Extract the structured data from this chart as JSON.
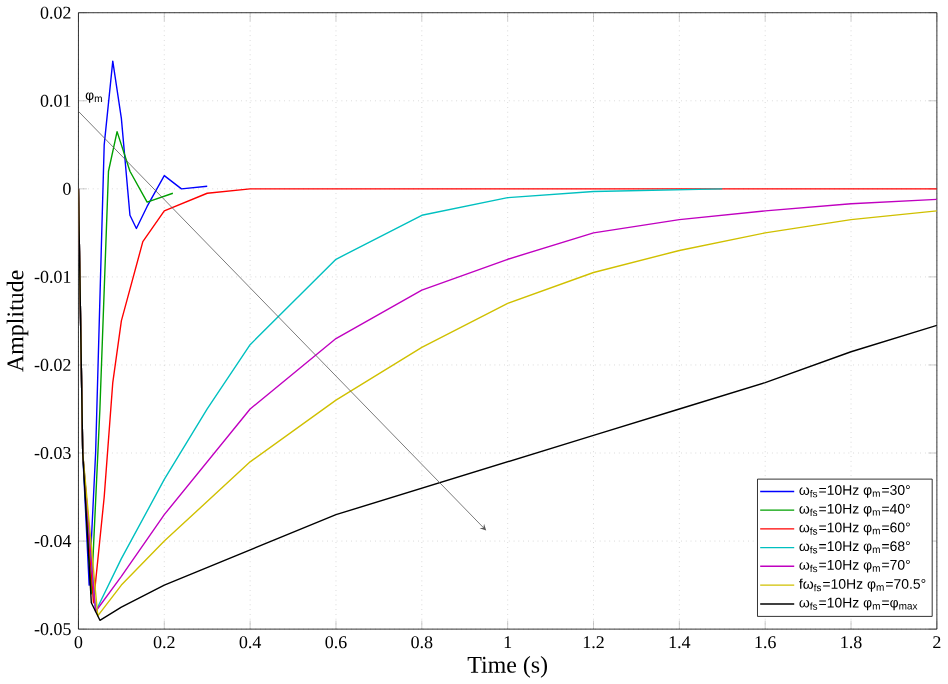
{
  "chart_data": {
    "type": "line",
    "xlabel": "Time (s)",
    "ylabel": "Amplitude",
    "xlim": [
      0,
      2
    ],
    "ylim": [
      -0.05,
      0.02
    ],
    "xticks": [
      0,
      0.2,
      0.4,
      0.6,
      0.8,
      1,
      1.2,
      1.4,
      1.6,
      1.8,
      2
    ],
    "yticks": [
      -0.05,
      -0.04,
      -0.03,
      -0.02,
      -0.01,
      0,
      0.01,
      0.02
    ],
    "grid": true,
    "legend": "bottom right",
    "marker": "none",
    "line_style": "solid",
    "annotations": [
      "φ$_{m}$"
    ],
    "series": [
      {
        "name": "ω$_{fs}$=10Hz φ$_{m}$=30°",
        "color": "#0000ff",
        "x": [
          0,
          0.01,
          0.025,
          0.04,
          0.06,
          0.08,
          0.1,
          0.12,
          0.135,
          0.16,
          0.2,
          0.24,
          0.3
        ],
        "values": [
          0,
          -0.03,
          -0.045,
          -0.03,
          0.005,
          0.0145,
          0.008,
          -0.003,
          -0.0045,
          -0.002,
          0.0015,
          0,
          0.0003
        ]
      },
      {
        "name": "ω$_{fs}$=10Hz φ$_{m}$=40°",
        "color": "#00a000",
        "x": [
          0,
          0.01,
          0.03,
          0.05,
          0.07,
          0.09,
          0.12,
          0.16,
          0.22
        ],
        "values": [
          0,
          -0.03,
          -0.046,
          -0.025,
          0.002,
          0.0065,
          0.002,
          -0.0015,
          -0.0005
        ]
      },
      {
        "name": "ω$_{fs}$=10Hz φ$_{m}$=60°",
        "color": "#ff0000",
        "x": [
          0,
          0.01,
          0.035,
          0.06,
          0.08,
          0.1,
          0.15,
          0.2,
          0.3,
          0.4,
          2
        ],
        "values": [
          0,
          -0.03,
          -0.047,
          -0.035,
          -0.022,
          -0.015,
          -0.006,
          -0.0025,
          -0.0005,
          0,
          0
        ]
      },
      {
        "name": "ω$_{fs}$=10Hz φ$_{m}$=68°",
        "color": "#00c0c0",
        "x": [
          0,
          0.01,
          0.04,
          0.1,
          0.2,
          0.3,
          0.4,
          0.6,
          0.8,
          1,
          1.2,
          1.5
        ],
        "values": [
          0,
          -0.03,
          -0.048,
          -0.042,
          -0.033,
          -0.025,
          -0.0177,
          -0.008,
          -0.003,
          -0.001,
          -0.0003,
          0
        ]
      },
      {
        "name": "ω$_{fs}$=10Hz φ$_{m}$=70°",
        "color": "#c000c0",
        "x": [
          0,
          0.01,
          0.04,
          0.1,
          0.2,
          0.4,
          0.6,
          0.8,
          1,
          1.2,
          1.4,
          1.6,
          1.8,
          2
        ],
        "values": [
          0,
          -0.03,
          -0.048,
          -0.044,
          -0.037,
          -0.025,
          -0.017,
          -0.0115,
          -0.008,
          -0.005,
          -0.0035,
          -0.0025,
          -0.0017,
          -0.0012
        ]
      },
      {
        "name": "fω$_{fs}$=10Hz φ$_{m}$=70.5°",
        "color": "#d0c000",
        "x": [
          0,
          0.01,
          0.045,
          0.1,
          0.2,
          0.4,
          0.6,
          0.8,
          1,
          1.2,
          1.4,
          1.6,
          1.8,
          2
        ],
        "values": [
          0,
          -0.03,
          -0.0485,
          -0.045,
          -0.04,
          -0.031,
          -0.024,
          -0.018,
          -0.013,
          -0.0095,
          -0.007,
          -0.005,
          -0.0035,
          -0.0025
        ]
      },
      {
        "name": "ω$_{fs}$=10Hz φ$_{m}$=φ$_{max}$",
        "color": "#000000",
        "x": [
          0,
          0.01,
          0.03,
          0.05,
          0.1,
          0.2,
          0.4,
          0.6,
          0.8,
          1,
          1.2,
          1.4,
          1.6,
          1.8,
          2
        ],
        "values": [
          0,
          -0.03,
          -0.047,
          -0.049,
          -0.0475,
          -0.045,
          -0.041,
          -0.037,
          -0.034,
          -0.031,
          -0.028,
          -0.025,
          -0.022,
          -0.0185,
          -0.0155
        ]
      }
    ]
  }
}
